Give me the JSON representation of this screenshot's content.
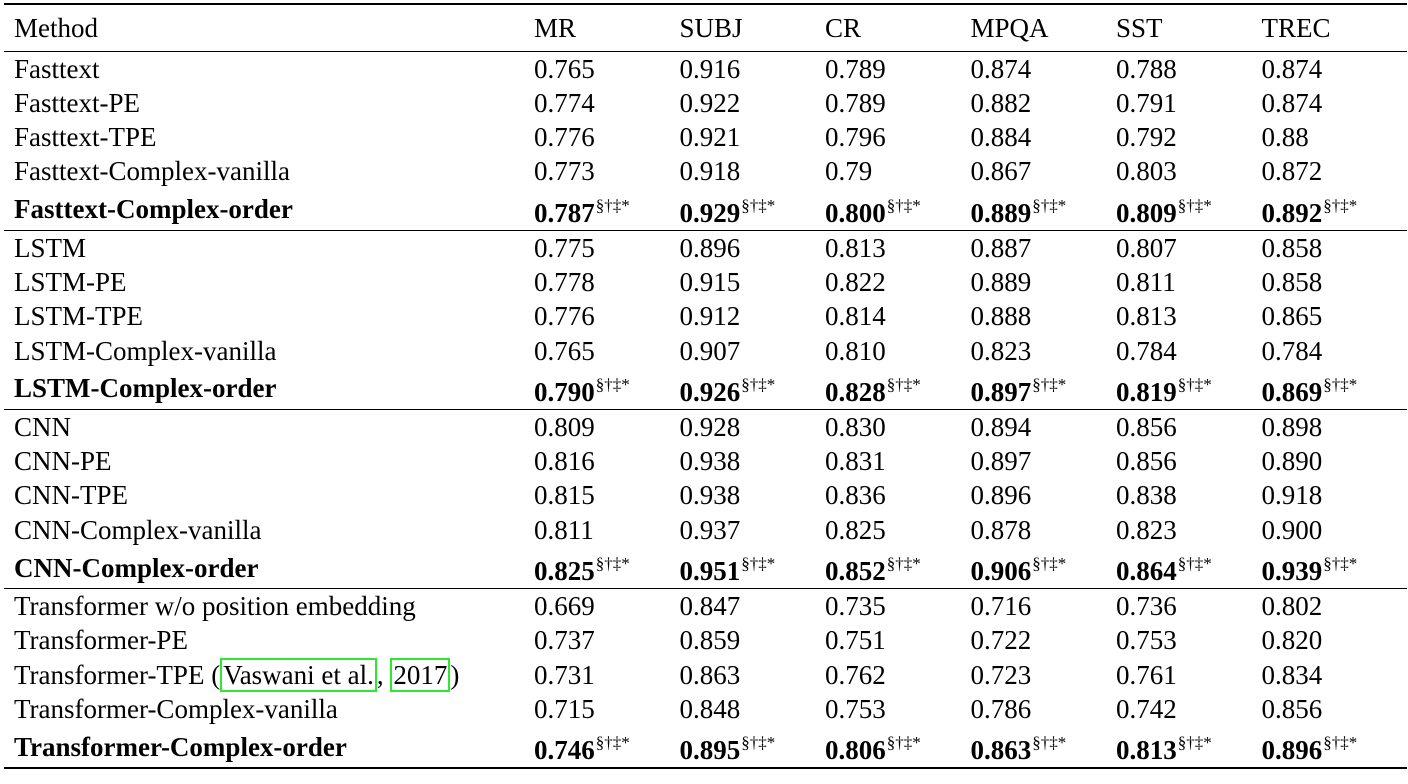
{
  "table": {
    "headers": [
      "Method",
      "MR",
      "SUBJ",
      "CR",
      "MPQA",
      "SST",
      "TREC"
    ],
    "sig_marker": "§†‡*",
    "groups": [
      {
        "rows": [
          {
            "method": "Fasttext",
            "values": [
              "0.765",
              "0.916",
              "0.789",
              "0.874",
              "0.788",
              "0.874"
            ]
          },
          {
            "method": "Fasttext-PE",
            "values": [
              "0.774",
              "0.922",
              "0.789",
              "0.882",
              "0.791",
              "0.874"
            ]
          },
          {
            "method": "Fasttext-TPE",
            "values": [
              "0.776",
              "0.921",
              "0.796",
              "0.884",
              "0.792",
              "0.88"
            ]
          },
          {
            "method": "Fasttext-Complex-vanilla",
            "values": [
              "0.773",
              "0.918",
              "0.79",
              "0.867",
              "0.803",
              "0.872"
            ]
          },
          {
            "method": "Fasttext-Complex-order",
            "values": [
              "0.787",
              "0.929",
              "0.800",
              "0.889",
              "0.809",
              "0.892"
            ],
            "bold": true
          }
        ]
      },
      {
        "rows": [
          {
            "method": "LSTM",
            "values": [
              "0.775",
              "0.896",
              "0.813",
              "0.887",
              "0.807",
              "0.858"
            ]
          },
          {
            "method": "LSTM-PE",
            "values": [
              "0.778",
              "0.915",
              "0.822",
              "0.889",
              "0.811",
              "0.858"
            ]
          },
          {
            "method": "LSTM-TPE",
            "values": [
              "0.776",
              "0.912",
              "0.814",
              "0.888",
              "0.813",
              "0.865"
            ]
          },
          {
            "method": "LSTM-Complex-vanilla",
            "values": [
              "0.765",
              "0.907",
              "0.810",
              "0.823",
              "0.784",
              "0.784"
            ]
          },
          {
            "method": "LSTM-Complex-order",
            "values": [
              "0.790",
              "0.926",
              "0.828",
              "0.897",
              "0.819",
              "0.869"
            ],
            "bold": true
          }
        ]
      },
      {
        "rows": [
          {
            "method": "CNN",
            "values": [
              "0.809",
              "0.928",
              "0.830",
              "0.894",
              "0.856",
              "0.898"
            ]
          },
          {
            "method": "CNN-PE",
            "values": [
              "0.816",
              "0.938",
              "0.831",
              "0.897",
              "0.856",
              "0.890"
            ]
          },
          {
            "method": "CNN-TPE",
            "values": [
              "0.815",
              "0.938",
              "0.836",
              "0.896",
              "0.838",
              "0.918"
            ]
          },
          {
            "method": "CNN-Complex-vanilla",
            "values": [
              "0.811",
              "0.937",
              "0.825",
              "0.878",
              "0.823",
              "0.900"
            ]
          },
          {
            "method": "CNN-Complex-order",
            "values": [
              "0.825",
              "0.951",
              "0.852",
              "0.906",
              "0.864",
              "0.939"
            ],
            "bold": true
          }
        ]
      },
      {
        "rows": [
          {
            "method": "Transformer w/o position embedding",
            "values": [
              "0.669",
              "0.847",
              "0.735",
              "0.716",
              "0.736",
              "0.802"
            ]
          },
          {
            "method": "Transformer-PE",
            "values": [
              "0.737",
              "0.859",
              "0.751",
              "0.722",
              "0.753",
              "0.820"
            ]
          },
          {
            "method": "Transformer-TPE",
            "citation": {
              "open": " (",
              "author": "Vaswani et al.",
              "sep": ", ",
              "year": "2017",
              "close": ")"
            },
            "values": [
              "0.731",
              "0.863",
              "0.762",
              "0.723",
              "0.761",
              "0.834"
            ]
          },
          {
            "method": "Transformer-Complex-vanilla",
            "values": [
              "0.715",
              "0.848",
              "0.753",
              "0.786",
              "0.742",
              "0.856"
            ]
          },
          {
            "method": "Transformer-Complex-order",
            "values": [
              "0.746",
              "0.895",
              "0.806",
              "0.863",
              "0.813",
              "0.896"
            ],
            "bold": true
          }
        ]
      }
    ]
  }
}
